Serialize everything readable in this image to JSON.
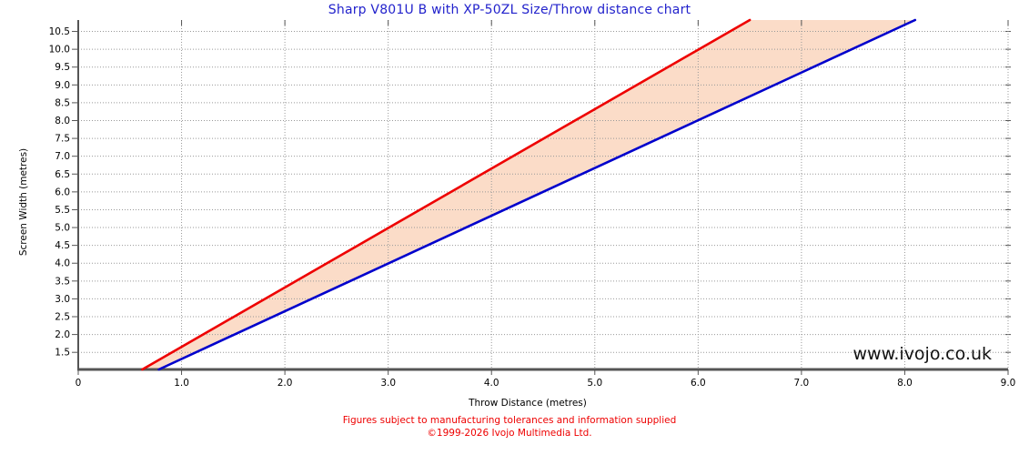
{
  "chart_data": {
    "type": "line",
    "title": "Sharp V801U B with XP-50ZL Size/Throw distance chart",
    "xlabel": "Throw Distance (metres)",
    "ylabel": "Screen Width (metres)",
    "xlim": [
      0,
      9
    ],
    "ylim": [
      1.02,
      10.82
    ],
    "grid": true,
    "grid_style": "dotted",
    "legend": false,
    "x_ticks": {
      "values": [
        0,
        1,
        2,
        3,
        4,
        5,
        6,
        7,
        8,
        9
      ],
      "labels": [
        "0",
        "1.0",
        "2.0",
        "3.0",
        "4.0",
        "5.0",
        "6.0",
        "7.0",
        "8.0",
        "9.0"
      ]
    },
    "y_ticks": {
      "values": [
        1.5,
        2.0,
        2.5,
        3.0,
        3.5,
        4.0,
        4.5,
        5.0,
        5.5,
        6.0,
        6.5,
        7.0,
        7.5,
        8.0,
        8.5,
        9.0,
        9.5,
        10.0,
        10.5
      ],
      "labels": [
        "1.5",
        "2.0",
        "2.5",
        "3.0",
        "3.5",
        "4.0",
        "4.5",
        "5.0",
        "5.5",
        "6.0",
        "6.5",
        "7.0",
        "7.5",
        "8.0",
        "8.5",
        "9.0",
        "9.5",
        "10.0",
        "10.5"
      ]
    },
    "series": [
      {
        "name": "red-line",
        "color": "#ee0000",
        "x": [
          0.62,
          6.5
        ],
        "y": [
          1.02,
          10.82
        ]
      },
      {
        "name": "blue-line",
        "color": "#0000cc",
        "x": [
          0.78,
          8.1
        ],
        "y": [
          1.02,
          10.82
        ]
      }
    ],
    "fill_between": {
      "color": "#fbdcc8"
    }
  },
  "watermark": "www.ivojo.co.uk",
  "footer": {
    "line1": "Figures subject to manufacturing tolerances and information supplied",
    "line2": "©1999-2026 Ivojo Multimedia Ltd."
  },
  "colors": {
    "title": "#2222cc",
    "footer": "#ee0000",
    "axis": "#555555",
    "grid": "#999999",
    "tick_text": "#000000",
    "watermark_text": "#111111",
    "background": "#ffffff"
  }
}
